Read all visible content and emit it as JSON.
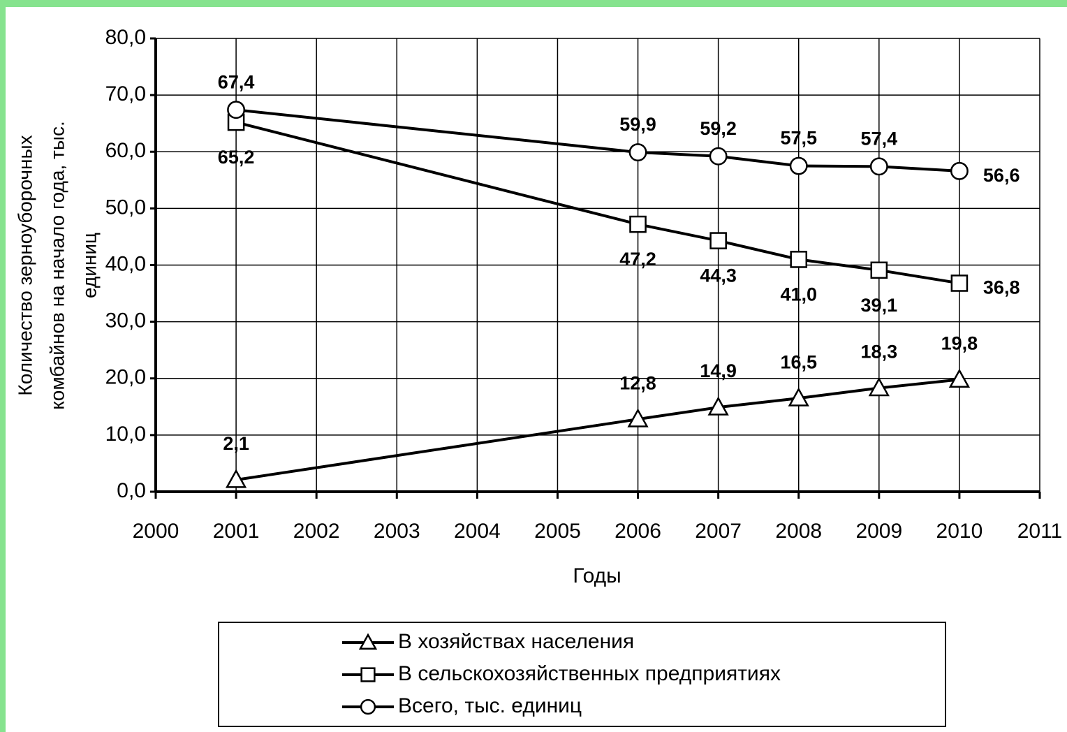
{
  "chart_data": {
    "type": "line",
    "y_label": [
      "Количество зерноуборочных",
      "комбайнов на начало года, тыс.",
      "единиц"
    ],
    "x_label": "Годы",
    "x": [
      2001,
      2006,
      2007,
      2008,
      2009,
      2010
    ],
    "series": [
      {
        "name": "В хозяйствах населения",
        "color": "#000000",
        "marker": "triangle",
        "values": [
          2.1,
          12.8,
          14.9,
          16.5,
          18.3,
          19.8
        ],
        "value_labels": [
          "2,1",
          "12,8",
          "14,9",
          "16,5",
          "18,3",
          "19,8"
        ]
      },
      {
        "name": "В сельскохозяйственных предприятиях",
        "color": "#000000",
        "marker": "square",
        "values": [
          65.2,
          47.2,
          44.3,
          41.0,
          39.1,
          36.8
        ],
        "value_labels": [
          "65,2",
          "47,2",
          "44,3",
          "41,0",
          "39,1",
          "36,8"
        ]
      },
      {
        "name": "Всего, тыс. единиц",
        "color": "#000000",
        "marker": "circle",
        "values": [
          67.4,
          59.9,
          59.2,
          57.5,
          57.4,
          56.6
        ],
        "value_labels": [
          "67,4",
          "59,9",
          "59,2",
          "57,5",
          "57,4",
          "56,6"
        ]
      }
    ],
    "xlim": [
      2000,
      2011
    ],
    "xticks": [
      2000,
      2001,
      2002,
      2003,
      2004,
      2005,
      2006,
      2007,
      2008,
      2009,
      2010,
      2011
    ],
    "ylim": [
      0,
      80
    ],
    "yticks": [
      {
        "value": 0,
        "label": "0,0"
      },
      {
        "value": 10,
        "label": "10,0"
      },
      {
        "value": 20,
        "label": "20,0"
      },
      {
        "value": 30,
        "label": "30,0"
      },
      {
        "value": 40,
        "label": "40,0"
      },
      {
        "value": 50,
        "label": "50,0"
      },
      {
        "value": 60,
        "label": "60,0"
      },
      {
        "value": 70,
        "label": "70,0"
      },
      {
        "value": 80,
        "label": "80,0"
      }
    ],
    "grid": true,
    "legend": "bottom"
  }
}
